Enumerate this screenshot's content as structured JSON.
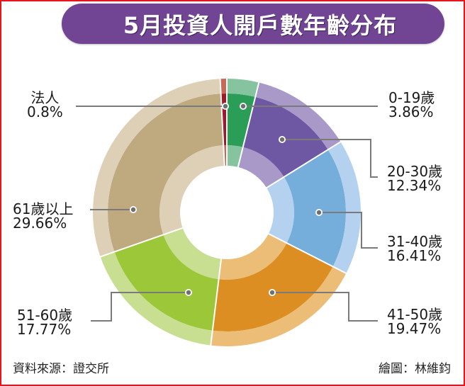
{
  "title": "5月投資人開戶數年齡分布",
  "footer": {
    "source": "資料來源：證交所",
    "credit": "繪圖：林維鈞"
  },
  "colors": {
    "frame": "#e8141c",
    "title_bg": "#714594",
    "leader": "#7a7a7a"
  },
  "chart_data": {
    "type": "pie",
    "variant": "donut",
    "title": "5月投資人開戶數年齡分布",
    "categories": [
      "0-19歲",
      "20-30歲",
      "31-40歲",
      "41-50歲",
      "51-60歲",
      "61歲以上",
      "法人"
    ],
    "values": [
      3.86,
      12.34,
      16.41,
      19.47,
      17.77,
      29.66,
      0.8
    ],
    "unit": "%",
    "start_angle_deg": 0,
    "direction": "clockwise",
    "segment_colors": {
      "main": [
        "#2a9e57",
        "#6e58a3",
        "#76aedb",
        "#dc8e22",
        "#9cc738",
        "#bfa97f",
        "#a3172a"
      ],
      "light": [
        "#85c49f",
        "#a899c9",
        "#b4d2ef",
        "#ebbd77",
        "#c8de91",
        "#ddd0b7",
        "#c86a58"
      ]
    },
    "labels": [
      {
        "name": "0-19歲",
        "value": "3.86%"
      },
      {
        "name": "20-30歲",
        "value": "12.34%"
      },
      {
        "name": "31-40歲",
        "value": "16.41%"
      },
      {
        "name": "41-50歲",
        "value": "19.47%"
      },
      {
        "name": "51-60歲",
        "value": "17.77%"
      },
      {
        "name": "61歲以上",
        "value": "29.66%"
      },
      {
        "name": "法人",
        "value": "0.8%"
      }
    ],
    "source": "證交所"
  }
}
